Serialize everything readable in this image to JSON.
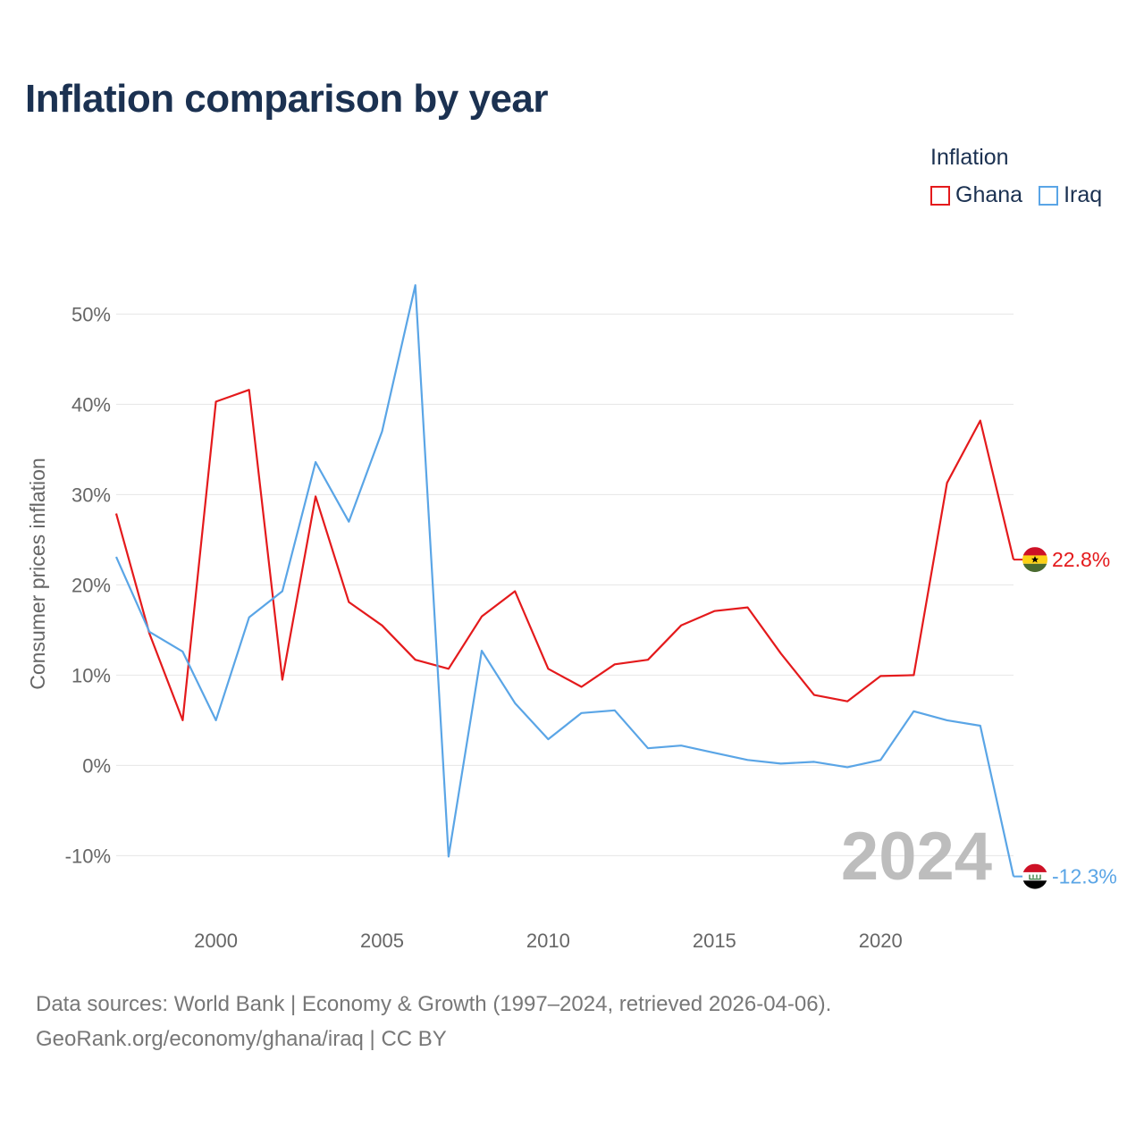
{
  "title": "Inflation comparison by year",
  "legend": {
    "title": "Inflation",
    "items": [
      {
        "name": "Ghana",
        "color": "#e41a1c"
      },
      {
        "name": "Iraq",
        "color": "#5aa5e6"
      }
    ]
  },
  "footer": {
    "line1": "Data sources: World Bank | Economy & Growth (1997–2024, retrieved 2026-04-06).",
    "line2": "GeoRank.org/economy/ghana/iraq | CC BY"
  },
  "chart_data": {
    "type": "line",
    "title": "Inflation comparison by year",
    "xlabel": "",
    "ylabel": "Consumer prices inflation",
    "x": [
      1997,
      1998,
      1999,
      2000,
      2001,
      2002,
      2003,
      2004,
      2005,
      2006,
      2007,
      2008,
      2009,
      2010,
      2011,
      2012,
      2013,
      2014,
      2015,
      2016,
      2017,
      2018,
      2019,
      2020,
      2021,
      2022,
      2023,
      2024
    ],
    "xlim": [
      1997,
      2024
    ],
    "ylim": [
      -16,
      54
    ],
    "xticks": [
      {
        "value": 2000,
        "label": "2000"
      },
      {
        "value": 2005,
        "label": "2005"
      },
      {
        "value": 2010,
        "label": "2010"
      },
      {
        "value": 2015,
        "label": "2015"
      },
      {
        "value": 2020,
        "label": "2020"
      }
    ],
    "yticks": [
      {
        "value": 50,
        "label": "50%"
      },
      {
        "value": 40,
        "label": "40%"
      },
      {
        "value": 30,
        "label": "30%"
      },
      {
        "value": 20,
        "label": "20%"
      },
      {
        "value": 10,
        "label": "10%"
      },
      {
        "value": 0,
        "label": "0%"
      },
      {
        "value": -10,
        "label": "-10%"
      }
    ],
    "grid": true,
    "year_watermark": "2024",
    "series": [
      {
        "name": "Ghana",
        "color": "#e41a1c",
        "end_label": "22.8%",
        "values": [
          27.9,
          14.6,
          5.0,
          40.3,
          41.6,
          9.5,
          29.8,
          18.1,
          15.5,
          11.7,
          10.7,
          16.5,
          19.3,
          10.7,
          8.7,
          11.2,
          11.7,
          15.5,
          17.1,
          17.5,
          12.4,
          7.8,
          7.1,
          9.9,
          10.0,
          31.3,
          38.2,
          22.8
        ]
      },
      {
        "name": "Iraq",
        "color": "#5aa5e6",
        "end_label": "-12.3%",
        "values": [
          23.1,
          14.8,
          12.6,
          5.0,
          16.4,
          19.3,
          33.6,
          27.0,
          37.0,
          53.2,
          -10.1,
          12.7,
          6.9,
          2.9,
          5.8,
          6.1,
          1.9,
          2.2,
          1.4,
          0.6,
          0.2,
          0.4,
          -0.2,
          0.6,
          6.0,
          5.0,
          4.4,
          -12.3
        ]
      }
    ]
  }
}
